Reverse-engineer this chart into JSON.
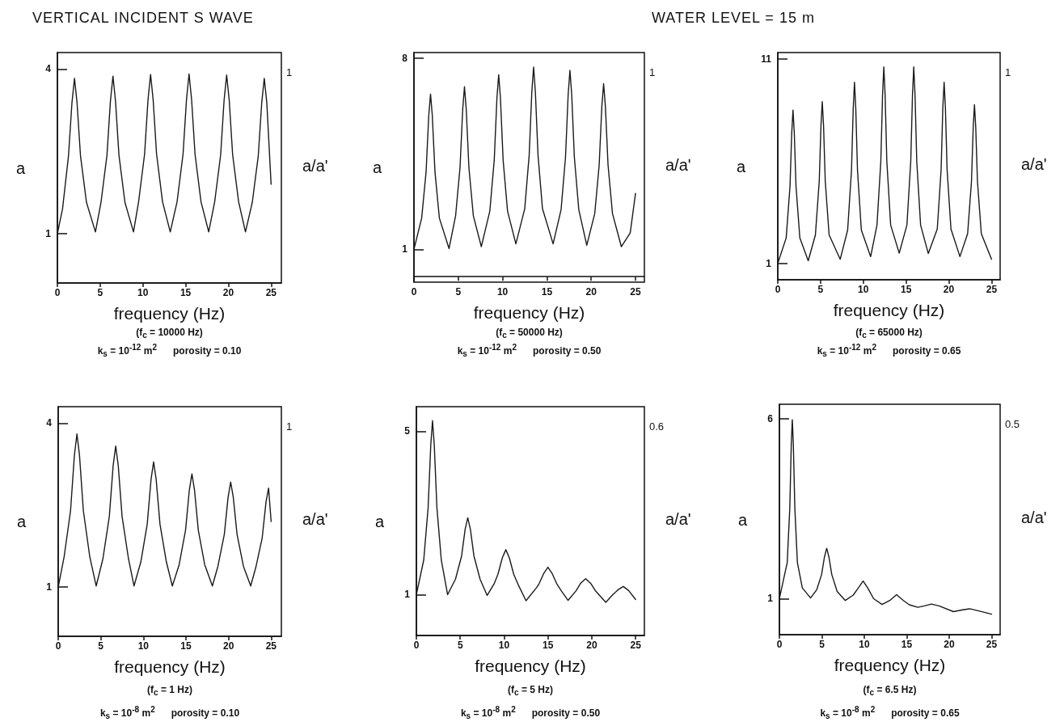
{
  "chart_data": [
    {
      "type": "line",
      "title": "VERTICAL INCIDENT S WAVE",
      "xlabel": "frequency (Hz)",
      "ylabel": "a",
      "y2label": "a/a'",
      "xlim": [
        0,
        26.2
      ],
      "xticks": [
        0,
        5,
        10,
        15,
        20,
        25
      ],
      "ylim": [
        0.1,
        4.3
      ],
      "yticks": [
        1,
        4
      ],
      "marker": "none",
      "annotations": [
        "(f$_{c}$ = 10000 Hz)",
        "k$_{s}$ = 10$^{-12}$ m$^{2}$      porosity = 0.10",
        "1"
      ],
      "series": [
        {
          "color": "#1a1a1a",
          "x": [
            0,
            0.6,
            1.3,
            1.7,
            2.0,
            2.3,
            2.7,
            3.4,
            4.45,
            5.1,
            5.8,
            6.2,
            6.5,
            6.8,
            7.2,
            7.9,
            8.9,
            9.5,
            10.2,
            10.6,
            10.9,
            11.2,
            11.6,
            12.3,
            13.2,
            14.0,
            14.7,
            15.1,
            15.4,
            15.7,
            16.1,
            16.8,
            17.7,
            18.4,
            19.1,
            19.5,
            19.8,
            20.1,
            20.5,
            21.2,
            22.0,
            22.8,
            23.5,
            23.9,
            24.2,
            24.5,
            25
          ],
          "values": [
            1.0,
            1.45,
            2.42,
            3.38,
            3.83,
            3.38,
            2.42,
            1.57,
            1.03,
            1.57,
            2.43,
            3.41,
            3.87,
            3.41,
            2.43,
            1.57,
            1.03,
            1.58,
            2.45,
            3.44,
            3.9,
            3.44,
            2.45,
            1.58,
            1.03,
            1.58,
            2.45,
            3.44,
            3.91,
            3.44,
            2.45,
            1.58,
            1.03,
            1.58,
            2.44,
            3.43,
            3.89,
            3.43,
            2.44,
            1.58,
            1.03,
            1.57,
            2.42,
            3.38,
            3.83,
            3.38,
            1.9
          ]
        }
      ]
    },
    {
      "type": "line",
      "xlabel": "frequency (Hz)",
      "ylabel": "a",
      "y2label": "a/a'",
      "xlim": [
        0,
        26
      ],
      "xticks": [
        0,
        5,
        10,
        15,
        20,
        25
      ],
      "ylim": [
        -0.2,
        8.2
      ],
      "yticks": [
        1,
        8
      ],
      "marker": "none",
      "annotations": [
        "(f$_{c}$ = 50000 Hz)",
        "k$_{s}$ = 10$^{-12}$ m$^{2}$      porosity = 0.50",
        "1"
      ],
      "series": [
        {
          "color": "#1a1a1a",
          "x": [
            0,
            0.87,
            1.37,
            1.67,
            1.87,
            2.07,
            2.37,
            2.87,
            3.96,
            4.7,
            5.2,
            5.5,
            5.7,
            5.9,
            6.2,
            6.7,
            7.6,
            8.56,
            9.06,
            9.36,
            9.56,
            9.76,
            10.06,
            10.56,
            11.5,
            12.5,
            13.0,
            13.3,
            13.5,
            13.7,
            14.0,
            14.5,
            15.7,
            16.6,
            17.1,
            17.4,
            17.6,
            17.8,
            18.1,
            18.6,
            19.5,
            20.4,
            20.9,
            21.2,
            21.4,
            21.6,
            21.9,
            22.4,
            23.4,
            24.4,
            25
          ],
          "values": [
            1.0,
            2.14,
            3.84,
            5.9,
            6.68,
            5.9,
            3.84,
            2.14,
            1.03,
            2.23,
            4.0,
            6.12,
            6.95,
            6.12,
            4.0,
            2.23,
            1.1,
            2.4,
            4.27,
            6.52,
            7.39,
            6.52,
            4.27,
            2.4,
            1.2,
            2.49,
            4.44,
            6.76,
            7.67,
            6.76,
            4.44,
            2.49,
            1.2,
            2.45,
            4.37,
            6.66,
            7.55,
            6.66,
            4.37,
            2.45,
            1.15,
            2.31,
            4.09,
            6.23,
            7.06,
            6.23,
            4.09,
            2.31,
            1.1,
            1.6,
            3.05
          ]
        }
      ]
    },
    {
      "type": "line",
      "title": "WATER LEVEL = 15 m",
      "xlabel": "frequency (Hz)",
      "ylabel": "a",
      "y2label": "a/a'",
      "xlim": [
        0,
        26
      ],
      "xticks": [
        0,
        5,
        10,
        15,
        20,
        25
      ],
      "ylim": [
        0.2,
        11.3
      ],
      "yticks": [
        1,
        11
      ],
      "marker": "none",
      "annotations": [
        "(f$_{c}$ = 65000 Hz)",
        "k$_{s}$ = 10$^{-12}$ m$^{2}$      porosity = 0.65",
        "1"
      ],
      "series": [
        {
          "color": "#1a1a1a",
          "x": [
            0,
            0.98,
            1.43,
            1.63,
            1.78,
            1.93,
            2.13,
            2.58,
            3.56,
            4.4,
            4.85,
            5.05,
            5.2,
            5.35,
            5.55,
            6.0,
            7.3,
            8.17,
            8.62,
            8.82,
            8.97,
            9.12,
            9.32,
            9.77,
            10.86,
            11.6,
            12.05,
            12.25,
            12.4,
            12.55,
            12.75,
            13.2,
            14.2,
            15.1,
            15.55,
            15.75,
            15.9,
            16.05,
            16.25,
            16.7,
            17.6,
            18.65,
            19.1,
            19.3,
            19.45,
            19.6,
            19.8,
            20.25,
            21.3,
            22.2,
            22.65,
            22.85,
            23.0,
            23.15,
            23.35,
            23.8,
            25
          ],
          "values": [
            1.0,
            2.24,
            4.77,
            7.37,
            8.49,
            7.37,
            4.77,
            2.24,
            1.13,
            2.39,
            5.03,
            7.74,
            8.9,
            7.74,
            5.03,
            2.39,
            1.2,
            2.63,
            5.55,
            8.56,
            9.85,
            8.56,
            5.55,
            2.63,
            1.33,
            2.87,
            6.0,
            9.22,
            10.6,
            9.22,
            6.0,
            2.87,
            1.5,
            2.87,
            6.0,
            9.22,
            10.6,
            9.22,
            6.0,
            2.87,
            1.48,
            2.68,
            5.58,
            8.61,
            9.85,
            8.61,
            5.58,
            2.68,
            1.33,
            2.45,
            5.0,
            7.63,
            8.75,
            7.63,
            5.0,
            2.45,
            1.2
          ]
        }
      ]
    },
    {
      "type": "line",
      "xlabel": "frequency (Hz)",
      "ylabel": "a",
      "y2label": "a/a'",
      "xlim": [
        0,
        26.2
      ],
      "xticks": [
        0,
        5,
        10,
        15,
        20,
        25
      ],
      "ylim": [
        0.1,
        4.3
      ],
      "yticks": [
        1,
        4
      ],
      "marker": "none",
      "annotations": [
        "(f$_{c}$ = 1 Hz)",
        "k$_{s}$ = 10$^{-8}$ m$^{2}$      porosity = 0.10",
        "1"
      ],
      "series": [
        {
          "color": "#1a1a1a",
          "x": [
            0,
            0.7,
            1.45,
            1.9,
            2.2,
            2.5,
            2.95,
            3.7,
            4.46,
            5.25,
            6.0,
            6.45,
            6.75,
            7.05,
            7.5,
            8.25,
            8.9,
            9.7,
            10.45,
            10.9,
            11.2,
            11.5,
            11.95,
            12.7,
            13.4,
            14.2,
            14.95,
            15.4,
            15.7,
            16.0,
            16.45,
            17.2,
            18.1,
            18.75,
            19.5,
            19.95,
            20.25,
            20.55,
            21.0,
            21.75,
            22.6,
            23.2,
            23.95,
            24.4,
            24.7,
            25
          ],
          "values": [
            1.0,
            1.56,
            2.4,
            3.41,
            3.8,
            3.41,
            2.4,
            1.56,
            1.02,
            1.52,
            2.29,
            3.22,
            3.58,
            3.22,
            2.29,
            1.52,
            1.02,
            1.46,
            2.15,
            2.97,
            3.29,
            2.97,
            2.15,
            1.46,
            1.02,
            1.41,
            2.04,
            2.78,
            3.07,
            2.78,
            2.04,
            1.41,
            1.02,
            1.38,
            1.96,
            2.65,
            2.92,
            2.65,
            1.96,
            1.38,
            1.02,
            1.36,
            1.9,
            2.56,
            2.81,
            2.2
          ]
        }
      ]
    },
    {
      "type": "line",
      "xlabel": "frequency (Hz)",
      "ylabel": "a",
      "y2label": "a/a'",
      "xlim": [
        0,
        26
      ],
      "xticks": [
        0,
        5,
        10,
        15,
        20,
        25
      ],
      "ylim": [
        0,
        5.6
      ],
      "yticks": [
        1,
        5
      ],
      "marker": "none",
      "annotations": [
        "(f$_{c}$ = 5 Hz)",
        "k$_{s}$ = 10$^{-8}$ m$^{2}$      porosity = 0.50",
        "0.6"
      ],
      "series": [
        {
          "color": "#1a1a1a",
          "x": [
            0,
            0.84,
            1.34,
            1.64,
            1.84,
            2.04,
            2.34,
            2.84,
            3.56,
            4.46,
            5.16,
            5.56,
            5.86,
            6.16,
            6.56,
            7.26,
            8.07,
            8.9,
            9.3,
            9.8,
            10.2,
            10.6,
            11.1,
            11.6,
            12.5,
            13.7,
            14.0,
            14.5,
            15.0,
            15.5,
            16.0,
            16.5,
            17.3,
            18.2,
            18.7,
            19.3,
            19.9,
            20.4,
            21.6,
            22.4,
            23.0,
            23.6,
            24.2,
            25
          ],
          "values": [
            1.0,
            1.85,
            3.13,
            4.66,
            5.26,
            4.66,
            3.13,
            1.85,
            1.0,
            1.38,
            1.95,
            2.6,
            2.88,
            2.6,
            1.95,
            1.38,
            0.98,
            1.28,
            1.5,
            1.9,
            2.1,
            1.9,
            1.5,
            1.25,
            0.85,
            1.17,
            1.27,
            1.51,
            1.67,
            1.51,
            1.27,
            1.1,
            0.86,
            1.09,
            1.27,
            1.39,
            1.27,
            1.1,
            0.81,
            1.0,
            1.12,
            1.2,
            1.1,
            0.88
          ]
        }
      ]
    },
    {
      "type": "line",
      "xlabel": "frequency (Hz)",
      "ylabel": "a",
      "y2label": "a/a'",
      "xlim": [
        0,
        26
      ],
      "xticks": [
        0,
        5,
        10,
        15,
        20,
        25
      ],
      "ylim": [
        0,
        6.4
      ],
      "yticks": [
        1,
        6
      ],
      "marker": "none",
      "annotations": [
        "(f$_{c}$ = 6.5 Hz)",
        "k$_{s}$ = 10$^{-8}$ m$^{2}$      porosity = 0.65",
        "0.5"
      ],
      "series": [
        {
          "color": "#1a1a1a",
          "x": [
            0,
            0.92,
            1.22,
            1.4,
            1.52,
            1.64,
            1.82,
            2.12,
            2.7,
            3.67,
            4.4,
            4.97,
            5.3,
            5.57,
            5.84,
            6.17,
            6.8,
            7.76,
            8.7,
            9.3,
            9.86,
            10.4,
            11.1,
            12.1,
            13.0,
            13.8,
            14.6,
            15.3,
            16.3,
            17.1,
            17.9,
            18.8,
            20.5,
            21.6,
            22.4,
            23.3,
            25
          ],
          "values": [
            1.0,
            2.0,
            3.5,
            5.3,
            5.97,
            5.3,
            3.5,
            2.0,
            1.3,
            1.02,
            1.25,
            1.67,
            2.15,
            2.4,
            2.15,
            1.67,
            1.2,
            0.95,
            1.1,
            1.3,
            1.49,
            1.3,
            1.0,
            0.84,
            0.95,
            1.11,
            0.95,
            0.83,
            0.76,
            0.8,
            0.85,
            0.8,
            0.64,
            0.69,
            0.72,
            0.67,
            0.57
          ]
        }
      ]
    }
  ]
}
